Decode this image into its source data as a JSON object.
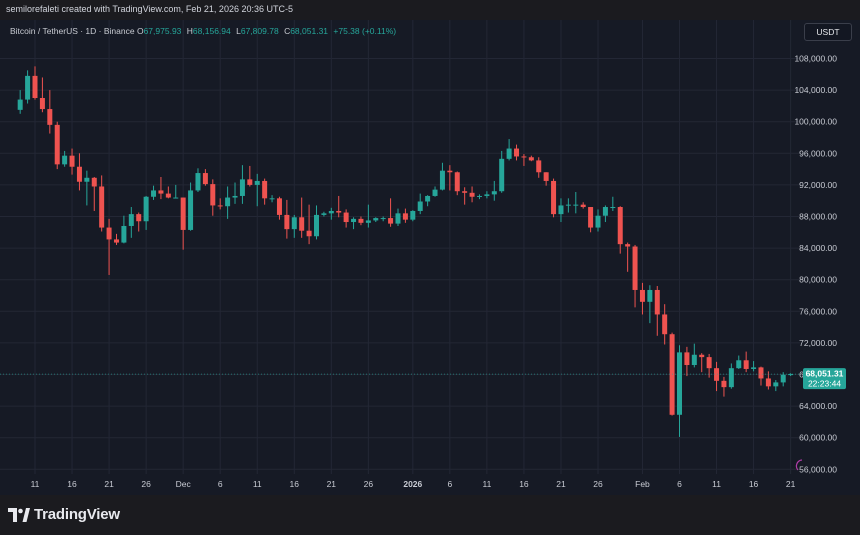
{
  "header": {
    "credit": "semilorefaleti created with TradingView.com, Feb 21, 2026 20:36 UTC-5"
  },
  "legend": {
    "symbol": "Bitcoin / TetherUS · 1D · Binance",
    "open_label": "O",
    "open": "67,975.93",
    "high_label": "H",
    "high": "68,156.94",
    "low_label": "L",
    "low": "67,809.78",
    "close_label": "C",
    "close": "68,051.31",
    "change": "+75.38 (+0.11%)"
  },
  "quote_currency": "USDT",
  "price_tag": {
    "price": "68,051.31",
    "countdown": "22:23:44"
  },
  "brand": {
    "name": "TradingView"
  },
  "colors": {
    "up": "#26a69a",
    "down": "#ef5350",
    "background": "#161a25",
    "grid": "#232735",
    "axis_text": "#c9ccd4",
    "tag": "#26a69a"
  },
  "chart_data": {
    "type": "candlestick",
    "title": "Bitcoin / TetherUS · 1D · Binance",
    "interval": "1D",
    "x_ticks": [
      "11",
      "16",
      "21",
      "26",
      "Dec",
      "6",
      "11",
      "16",
      "21",
      "26",
      "2026",
      "6",
      "11",
      "16",
      "21",
      "26",
      "Feb",
      "6",
      "11",
      "16",
      "21"
    ],
    "y_ticks": [
      "108,000.00",
      "104,000.00",
      "100,000.00",
      "96,000.00",
      "92,000.00",
      "88,000.00",
      "84,000.00",
      "80,000.00",
      "76,000.00",
      "72,000.00",
      "68,000.00",
      "64,000.00",
      "60,000.00",
      "56,000.00"
    ],
    "ylim": [
      55000,
      110000
    ],
    "grid": true,
    "last_price_line": 68051.31,
    "candles": [
      {
        "date": "2025-11-09",
        "o": 101500,
        "h": 104000,
        "l": 101000,
        "c": 102800
      },
      {
        "date": "2025-11-10",
        "o": 102800,
        "h": 106500,
        "l": 102300,
        "c": 105800
      },
      {
        "date": "2025-11-11",
        "o": 105800,
        "h": 107000,
        "l": 102800,
        "c": 103000
      },
      {
        "date": "2025-11-12",
        "o": 103000,
        "h": 105600,
        "l": 101200,
        "c": 101600
      },
      {
        "date": "2025-11-13",
        "o": 101600,
        "h": 104000,
        "l": 98500,
        "c": 99600
      },
      {
        "date": "2025-11-14",
        "o": 99600,
        "h": 100000,
        "l": 94000,
        "c": 94600
      },
      {
        "date": "2025-11-15",
        "o": 94600,
        "h": 96300,
        "l": 94300,
        "c": 95700
      },
      {
        "date": "2025-11-16",
        "o": 95700,
        "h": 96600,
        "l": 93300,
        "c": 94300
      },
      {
        "date": "2025-11-17",
        "o": 94300,
        "h": 96000,
        "l": 91300,
        "c": 92400
      },
      {
        "date": "2025-11-18",
        "o": 92400,
        "h": 93800,
        "l": 89400,
        "c": 92900
      },
      {
        "date": "2025-11-19",
        "o": 92900,
        "h": 93000,
        "l": 88700,
        "c": 91800
      },
      {
        "date": "2025-11-20",
        "o": 91800,
        "h": 93200,
        "l": 86100,
        "c": 86600
      },
      {
        "date": "2025-11-21",
        "o": 86600,
        "h": 87700,
        "l": 80600,
        "c": 85100
      },
      {
        "date": "2025-11-22",
        "o": 85100,
        "h": 85800,
        "l": 84400,
        "c": 84700
      },
      {
        "date": "2025-11-23",
        "o": 84700,
        "h": 88100,
        "l": 84600,
        "c": 86800
      },
      {
        "date": "2025-11-24",
        "o": 86800,
        "h": 89200,
        "l": 85300,
        "c": 88300
      },
      {
        "date": "2025-11-25",
        "o": 88300,
        "h": 88500,
        "l": 86100,
        "c": 87400
      },
      {
        "date": "2025-11-26",
        "o": 87400,
        "h": 90600,
        "l": 86300,
        "c": 90500
      },
      {
        "date": "2025-11-27",
        "o": 90500,
        "h": 91900,
        "l": 90100,
        "c": 91300
      },
      {
        "date": "2025-11-28",
        "o": 91300,
        "h": 93000,
        "l": 90200,
        "c": 90900
      },
      {
        "date": "2025-11-29",
        "o": 90900,
        "h": 91800,
        "l": 90300,
        "c": 90400
      },
      {
        "date": "2025-11-30",
        "o": 90400,
        "h": 92000,
        "l": 90300,
        "c": 90400
      },
      {
        "date": "2025-12-01",
        "o": 90400,
        "h": 90400,
        "l": 83800,
        "c": 86300
      },
      {
        "date": "2025-12-02",
        "o": 86300,
        "h": 92300,
        "l": 86200,
        "c": 91300
      },
      {
        "date": "2025-12-03",
        "o": 91300,
        "h": 94100,
        "l": 91100,
        "c": 93500
      },
      {
        "date": "2025-12-04",
        "o": 93500,
        "h": 94000,
        "l": 91900,
        "c": 92100
      },
      {
        "date": "2025-12-05",
        "o": 92100,
        "h": 92700,
        "l": 88100,
        "c": 89400
      },
      {
        "date": "2025-12-06",
        "o": 89400,
        "h": 90300,
        "l": 88900,
        "c": 89300
      },
      {
        "date": "2025-12-07",
        "o": 89300,
        "h": 91800,
        "l": 87700,
        "c": 90400
      },
      {
        "date": "2025-12-08",
        "o": 90400,
        "h": 92300,
        "l": 89600,
        "c": 90600
      },
      {
        "date": "2025-12-09",
        "o": 90600,
        "h": 94500,
        "l": 89600,
        "c": 92700
      },
      {
        "date": "2025-12-10",
        "o": 92700,
        "h": 94400,
        "l": 91800,
        "c": 92000
      },
      {
        "date": "2025-12-11",
        "o": 92000,
        "h": 93400,
        "l": 89300,
        "c": 92500
      },
      {
        "date": "2025-12-12",
        "o": 92500,
        "h": 92800,
        "l": 89500,
        "c": 90300
      },
      {
        "date": "2025-12-13",
        "o": 90300,
        "h": 90700,
        "l": 89800,
        "c": 90300
      },
      {
        "date": "2025-12-14",
        "o": 90300,
        "h": 90500,
        "l": 87600,
        "c": 88200
      },
      {
        "date": "2025-12-15",
        "o": 88200,
        "h": 90100,
        "l": 85200,
        "c": 86400
      },
      {
        "date": "2025-12-16",
        "o": 86400,
        "h": 88200,
        "l": 85300,
        "c": 87900
      },
      {
        "date": "2025-12-17",
        "o": 87900,
        "h": 90400,
        "l": 85300,
        "c": 86200
      },
      {
        "date": "2025-12-18",
        "o": 86200,
        "h": 89500,
        "l": 84500,
        "c": 85500
      },
      {
        "date": "2025-12-19",
        "o": 85500,
        "h": 89400,
        "l": 85100,
        "c": 88200
      },
      {
        "date": "2025-12-20",
        "o": 88200,
        "h": 88600,
        "l": 88000,
        "c": 88400
      },
      {
        "date": "2025-12-21",
        "o": 88400,
        "h": 89100,
        "l": 87600,
        "c": 88700
      },
      {
        "date": "2025-12-22",
        "o": 88700,
        "h": 90600,
        "l": 87900,
        "c": 88500
      },
      {
        "date": "2025-12-23",
        "o": 88500,
        "h": 88900,
        "l": 86600,
        "c": 87300
      },
      {
        "date": "2025-12-24",
        "o": 87300,
        "h": 87900,
        "l": 86400,
        "c": 87700
      },
      {
        "date": "2025-12-25",
        "o": 87700,
        "h": 88000,
        "l": 86900,
        "c": 87200
      },
      {
        "date": "2025-12-26",
        "o": 87200,
        "h": 89500,
        "l": 86600,
        "c": 87500
      },
      {
        "date": "2025-12-27",
        "o": 87500,
        "h": 87900,
        "l": 87300,
        "c": 87800
      },
      {
        "date": "2025-12-28",
        "o": 87800,
        "h": 88000,
        "l": 87400,
        "c": 87800
      },
      {
        "date": "2025-12-29",
        "o": 87800,
        "h": 90300,
        "l": 86700,
        "c": 87100
      },
      {
        "date": "2025-12-30",
        "o": 87100,
        "h": 89000,
        "l": 86800,
        "c": 88400
      },
      {
        "date": "2025-12-31",
        "o": 88400,
        "h": 89000,
        "l": 87200,
        "c": 87600
      },
      {
        "date": "2026-01-01",
        "o": 87600,
        "h": 88800,
        "l": 87400,
        "c": 88700
      },
      {
        "date": "2026-01-02",
        "o": 88700,
        "h": 90900,
        "l": 88300,
        "c": 89900
      },
      {
        "date": "2026-01-03",
        "o": 89900,
        "h": 90700,
        "l": 89300,
        "c": 90600
      },
      {
        "date": "2026-01-04",
        "o": 90600,
        "h": 91800,
        "l": 90500,
        "c": 91400
      },
      {
        "date": "2026-01-05",
        "o": 91400,
        "h": 94800,
        "l": 91300,
        "c": 93800
      },
      {
        "date": "2026-01-06",
        "o": 93800,
        "h": 94500,
        "l": 91300,
        "c": 93600
      },
      {
        "date": "2026-01-07",
        "o": 93600,
        "h": 93700,
        "l": 90700,
        "c": 91200
      },
      {
        "date": "2026-01-08",
        "o": 91200,
        "h": 91700,
        "l": 89500,
        "c": 91000
      },
      {
        "date": "2026-01-09",
        "o": 91000,
        "h": 91800,
        "l": 89800,
        "c": 90500
      },
      {
        "date": "2026-01-10",
        "o": 90500,
        "h": 90800,
        "l": 90200,
        "c": 90600
      },
      {
        "date": "2026-01-11",
        "o": 90600,
        "h": 91200,
        "l": 90300,
        "c": 90800
      },
      {
        "date": "2026-01-12",
        "o": 90800,
        "h": 92500,
        "l": 90000,
        "c": 91200
      },
      {
        "date": "2026-01-13",
        "o": 91200,
        "h": 96300,
        "l": 91000,
        "c": 95300
      },
      {
        "date": "2026-01-14",
        "o": 95300,
        "h": 97800,
        "l": 95100,
        "c": 96600
      },
      {
        "date": "2026-01-15",
        "o": 96600,
        "h": 97100,
        "l": 95100,
        "c": 95600
      },
      {
        "date": "2026-01-16",
        "o": 95600,
        "h": 95900,
        "l": 94400,
        "c": 95500
      },
      {
        "date": "2026-01-17",
        "o": 95500,
        "h": 95700,
        "l": 95000,
        "c": 95100
      },
      {
        "date": "2026-01-18",
        "o": 95100,
        "h": 95500,
        "l": 92900,
        "c": 93600
      },
      {
        "date": "2026-01-19",
        "o": 93600,
        "h": 93600,
        "l": 91900,
        "c": 92500
      },
      {
        "date": "2026-01-20",
        "o": 92500,
        "h": 92800,
        "l": 87900,
        "c": 88300
      },
      {
        "date": "2026-01-21",
        "o": 88300,
        "h": 90300,
        "l": 87300,
        "c": 89400
      },
      {
        "date": "2026-01-22",
        "o": 89400,
        "h": 90300,
        "l": 88500,
        "c": 89500
      },
      {
        "date": "2026-01-23",
        "o": 89500,
        "h": 91100,
        "l": 88400,
        "c": 89500
      },
      {
        "date": "2026-01-24",
        "o": 89500,
        "h": 89800,
        "l": 89000,
        "c": 89200
      },
      {
        "date": "2026-01-25",
        "o": 89200,
        "h": 89200,
        "l": 86000,
        "c": 86600
      },
      {
        "date": "2026-01-26",
        "o": 86600,
        "h": 88900,
        "l": 86100,
        "c": 88100
      },
      {
        "date": "2026-01-27",
        "o": 88100,
        "h": 89400,
        "l": 87300,
        "c": 89200
      },
      {
        "date": "2026-01-28",
        "o": 89200,
        "h": 90500,
        "l": 88700,
        "c": 89200
      },
      {
        "date": "2026-01-29",
        "o": 89200,
        "h": 89300,
        "l": 83300,
        "c": 84500
      },
      {
        "date": "2026-01-30",
        "o": 84500,
        "h": 84700,
        "l": 81000,
        "c": 84200
      },
      {
        "date": "2026-01-31",
        "o": 84200,
        "h": 84400,
        "l": 76500,
        "c": 78700
      },
      {
        "date": "2026-02-01",
        "o": 78700,
        "h": 79600,
        "l": 75600,
        "c": 77200
      },
      {
        "date": "2026-02-02",
        "o": 77200,
        "h": 79300,
        "l": 74500,
        "c": 78700
      },
      {
        "date": "2026-02-03",
        "o": 78700,
        "h": 79200,
        "l": 72900,
        "c": 75600
      },
      {
        "date": "2026-02-04",
        "o": 75600,
        "h": 76900,
        "l": 71800,
        "c": 73100
      },
      {
        "date": "2026-02-05",
        "o": 73100,
        "h": 73300,
        "l": 62800,
        "c": 62900
      },
      {
        "date": "2026-02-06",
        "o": 62900,
        "h": 71700,
        "l": 60100,
        "c": 70800
      },
      {
        "date": "2026-02-07",
        "o": 70800,
        "h": 71500,
        "l": 67800,
        "c": 69200
      },
      {
        "date": "2026-02-08",
        "o": 69200,
        "h": 71900,
        "l": 68900,
        "c": 70500
      },
      {
        "date": "2026-02-09",
        "o": 70500,
        "h": 70700,
        "l": 68300,
        "c": 70200
      },
      {
        "date": "2026-02-10",
        "o": 70200,
        "h": 70600,
        "l": 67600,
        "c": 68800
      },
      {
        "date": "2026-02-11",
        "o": 68800,
        "h": 69600,
        "l": 65900,
        "c": 67200
      },
      {
        "date": "2026-02-12",
        "o": 67200,
        "h": 67700,
        "l": 65200,
        "c": 66400
      },
      {
        "date": "2026-02-13",
        "o": 66400,
        "h": 69400,
        "l": 66200,
        "c": 68800
      },
      {
        "date": "2026-02-14",
        "o": 68800,
        "h": 70400,
        "l": 68700,
        "c": 69800
      },
      {
        "date": "2026-02-15",
        "o": 69800,
        "h": 70900,
        "l": 68300,
        "c": 68700
      },
      {
        "date": "2026-02-16",
        "o": 68700,
        "h": 69700,
        "l": 68400,
        "c": 68900
      },
      {
        "date": "2026-02-17",
        "o": 68900,
        "h": 69000,
        "l": 66600,
        "c": 67500
      },
      {
        "date": "2026-02-18",
        "o": 67500,
        "h": 68400,
        "l": 66100,
        "c": 66500
      },
      {
        "date": "2026-02-19",
        "o": 66500,
        "h": 67300,
        "l": 65900,
        "c": 67000
      },
      {
        "date": "2026-02-20",
        "o": 67000,
        "h": 68300,
        "l": 66500,
        "c": 67976
      },
      {
        "date": "2026-02-21",
        "o": 67976,
        "h": 68157,
        "l": 67810,
        "c": 68051
      }
    ]
  }
}
